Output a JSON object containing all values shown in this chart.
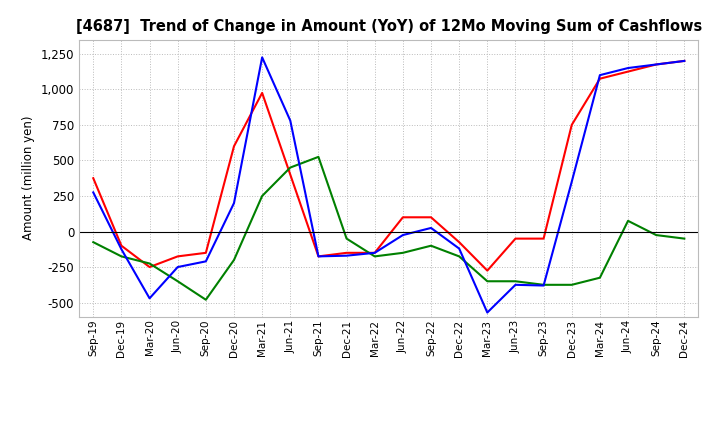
{
  "title": "[4687]  Trend of Change in Amount (YoY) of 12Mo Moving Sum of Cashflows",
  "ylabel": "Amount (million yen)",
  "x_labels": [
    "Sep-19",
    "Dec-19",
    "Mar-20",
    "Jun-20",
    "Sep-20",
    "Dec-20",
    "Mar-21",
    "Jun-21",
    "Sep-21",
    "Dec-21",
    "Mar-22",
    "Jun-22",
    "Sep-22",
    "Dec-22",
    "Mar-23",
    "Jun-23",
    "Sep-23",
    "Dec-23",
    "Mar-24",
    "Jun-24",
    "Sep-24",
    "Dec-24"
  ],
  "operating": [
    375,
    -100,
    -250,
    -175,
    -150,
    600,
    975,
    400,
    -175,
    -150,
    -150,
    100,
    100,
    -75,
    -275,
    -50,
    -50,
    750,
    1075,
    1125,
    1175,
    1200
  ],
  "investing": [
    -75,
    -175,
    -225,
    -350,
    -480,
    -200,
    250,
    450,
    525,
    -50,
    -175,
    -150,
    -100,
    -175,
    -350,
    -350,
    -375,
    -375,
    -325,
    75,
    -25,
    -50
  ],
  "free": [
    275,
    -125,
    -470,
    -250,
    -210,
    200,
    1225,
    780,
    -175,
    -170,
    -150,
    -25,
    25,
    -120,
    -570,
    -375,
    -380,
    350,
    1100,
    1150,
    1175,
    1200
  ],
  "operating_color": "#FF0000",
  "investing_color": "#008000",
  "free_color": "#0000FF",
  "background_color": "#FFFFFF",
  "grid_color": "#BBBBBB",
  "ylim": [
    -600,
    1350
  ],
  "yticks": [
    -500,
    -250,
    0,
    250,
    500,
    750,
    1000,
    1250
  ]
}
